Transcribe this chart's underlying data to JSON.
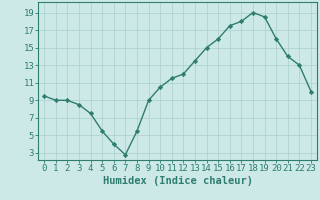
{
  "x": [
    0,
    1,
    2,
    3,
    4,
    5,
    6,
    7,
    8,
    9,
    10,
    11,
    12,
    13,
    14,
    15,
    16,
    17,
    18,
    19,
    20,
    21,
    22,
    23
  ],
  "y": [
    9.5,
    9.0,
    9.0,
    8.5,
    7.5,
    5.5,
    4.0,
    2.8,
    5.5,
    9.0,
    10.5,
    11.5,
    12.0,
    13.5,
    15.0,
    16.0,
    17.5,
    18.0,
    19.0,
    18.5,
    16.0,
    14.0,
    13.0,
    10.0
  ],
  "line_color": "#2e7d6e",
  "marker": "D",
  "marker_size": 2.2,
  "bg_color": "#cce9e7",
  "grid_color": "#b0d4d0",
  "xlabel": "Humidex (Indice chaleur)",
  "ylabel_ticks": [
    3,
    5,
    7,
    9,
    11,
    13,
    15,
    17,
    19
  ],
  "xlim": [
    -0.5,
    23.5
  ],
  "ylim": [
    2.2,
    20.2
  ],
  "xticks": [
    0,
    1,
    2,
    3,
    4,
    5,
    6,
    7,
    8,
    9,
    10,
    11,
    12,
    13,
    14,
    15,
    16,
    17,
    18,
    19,
    20,
    21,
    22,
    23
  ],
  "tick_color": "#2e7d6e",
  "label_fontsize": 7.5,
  "tick_fontsize": 6.5,
  "spine_color": "#2e7d6e",
  "linewidth": 1.0
}
